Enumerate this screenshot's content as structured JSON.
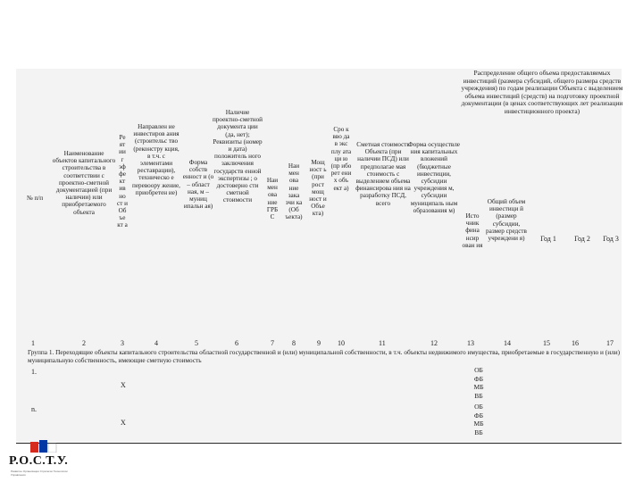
{
  "columns": [
    {
      "text": "№ п/п"
    },
    {
      "text": "Наименование объектов капитального строительства в соответствии с проектно-сметной документацией (при наличии) или приобретаемого объекта"
    },
    {
      "text": "Ре ят ии г эф фе кт ив но ст и Об ъе кт а"
    },
    {
      "text": "Направлен ие инвестиров ания (строительс тво (реконстру кция, в т.ч. с элементами реставрации), техническо е перевоору жение, приобретен ие)"
    },
    {
      "text": "Форма собств енност и (о – област ная, м – муниц ипальн ая)"
    },
    {
      "text": "Наличие проектно-сметной документа ции (да, нет); Реквизиты (номер и дата) положитель ного заключения государств енной экспертизы ; о достоверно сти сметной стоимости"
    },
    {
      "text": "Наи мен ова ние ГРБ С"
    },
    {
      "text": "Наи мен ова ние зака зчи ка (Об ъекта)"
    },
    {
      "text": "Мощ ност ь (при рост мощ ност и Объе кта)"
    },
    {
      "text": "Сро к вво да в экс плу ата ци ю (пр ибо рет ени х объ ект а)"
    },
    {
      "text": "Сметная стоимость Объекта (при наличии ПСД) или предполагае мая стоимость с выделением объема финансирова ния на разработку ПСД, всего"
    },
    {
      "text": "Форма осуществле ния капитальных вложений (бюджетные инвестиции, субсидии учреждения м, субсидии муниципаль ным образования м)"
    },
    {
      "text": "Исто чник фина нсир ован ия"
    },
    {
      "text": "Общий объем инвестици й (размер субсидии, размер средств учреждени я)"
    },
    {
      "text": "Год 1"
    },
    {
      "text": "Год 2"
    },
    {
      "text": "Год 3"
    }
  ],
  "distribution_header": "Распределение общего объема предоставляемых инвестиций (размера субсидий, общего размера средств учреждения) по годам реализации Объекта с выделением объема инвестиций (средств) на подготовку проектной документации (в ценах соответствующих лет реализации инвестиционного проекта)",
  "column_numbers": [
    "1",
    "2",
    "3",
    "4",
    "5",
    "6",
    "7",
    "8",
    "9",
    "10",
    "11",
    "12",
    "13",
    "14",
    "15",
    "16",
    "17"
  ],
  "group_title": "Группа 1. Переходящие объекты капитального строительства областной государственной и (или) муниципальной собственности, в т.ч. объекты недвижимого имущества, приобретаемые в государственную и (или) муниципальную собственность, имеющие сметную стоимость",
  "rows": [
    {
      "number": "1.",
      "mark": "Х",
      "codes": [
        "ОБ",
        "ФБ",
        "МБ",
        "ВБ"
      ]
    },
    {
      "number": "n.",
      "mark": "Х",
      "codes": [
        "ОБ",
        "ФБ",
        "МБ",
        "ВБ"
      ]
    }
  ],
  "logo": {
    "name": "Р.О.С.Т.У.",
    "subtitle": "Развитие Организации Стратегии Технологии Управления",
    "colors": [
      "#d52b1e",
      "#0039a6",
      "#ffffff"
    ]
  }
}
